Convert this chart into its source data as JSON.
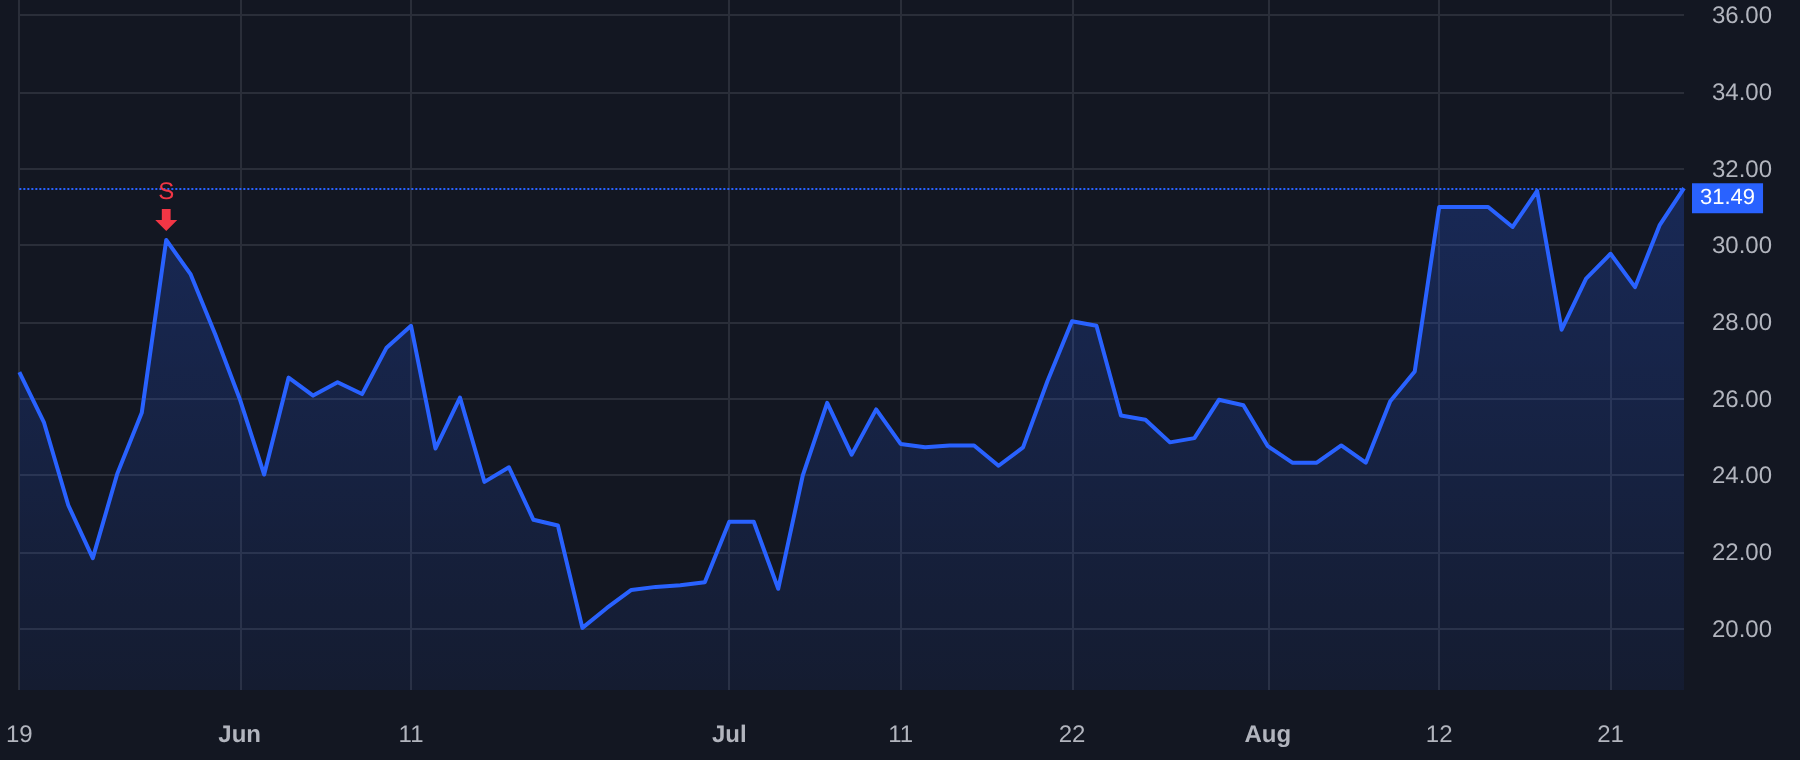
{
  "chart_data": {
    "type": "area",
    "categories": [
      "19",
      null,
      null,
      null,
      null,
      null,
      null,
      null,
      null,
      "Jun",
      null,
      null,
      null,
      null,
      null,
      null,
      "11",
      null,
      null,
      null,
      null,
      null,
      null,
      null,
      null,
      null,
      null,
      null,
      null,
      "Jul",
      null,
      null,
      null,
      null,
      null,
      null,
      "11",
      null,
      null,
      null,
      null,
      null,
      null,
      "22",
      null,
      null,
      null,
      null,
      null,
      null,
      null,
      "Aug",
      null,
      null,
      null,
      null,
      null,
      null,
      "12",
      null,
      null,
      null,
      null,
      null,
      null,
      "21",
      null,
      null,
      null
    ],
    "series": [
      {
        "color": "#2962ff",
        "values": [
          26.69,
          25.39,
          23.22,
          21.84,
          24.04,
          25.63,
          30.14,
          29.24,
          27.68,
          26.0,
          24.02,
          26.55,
          26.08,
          26.43,
          26.12,
          27.33,
          27.9,
          24.7,
          26.03,
          23.83,
          24.21,
          22.84,
          22.69,
          20.02,
          20.54,
          21.01,
          21.09,
          21.13,
          21.21,
          22.79,
          22.79,
          21.04,
          23.99,
          25.89,
          24.54,
          25.72,
          24.82,
          24.73,
          24.78,
          24.78,
          24.25,
          24.73,
          26.46,
          28.02,
          27.9,
          25.56,
          25.45,
          24.86,
          24.97,
          25.97,
          25.83,
          24.76,
          24.33,
          24.33,
          24.78,
          24.33,
          25.93,
          26.71,
          31.0,
          31.0,
          31.0,
          30.48,
          31.42,
          27.8,
          29.13,
          29.78,
          28.91,
          30.52,
          31.49
        ]
      }
    ],
    "ylim": [
      18.4,
      36.4
    ],
    "yticks": [
      {
        "value": 20,
        "label": "20.00"
      },
      {
        "value": 22,
        "label": "22.00"
      },
      {
        "value": 24,
        "label": "24.00"
      },
      {
        "value": 26,
        "label": "26.00"
      },
      {
        "value": 28,
        "label": "28.00"
      },
      {
        "value": 30,
        "label": "30.00"
      },
      {
        "value": 32,
        "label": "32.00"
      },
      {
        "value": 34,
        "label": "34.00"
      },
      {
        "value": 36,
        "label": "36.00"
      }
    ],
    "grid": true,
    "ref_lines": [
      {
        "axis": "y",
        "value": 31.49,
        "label": "31.49",
        "color": "#2962ff",
        "line_style": "dotted"
      }
    ],
    "annotations": [
      {
        "text": "S",
        "y": 30.14
      }
    ]
  }
}
